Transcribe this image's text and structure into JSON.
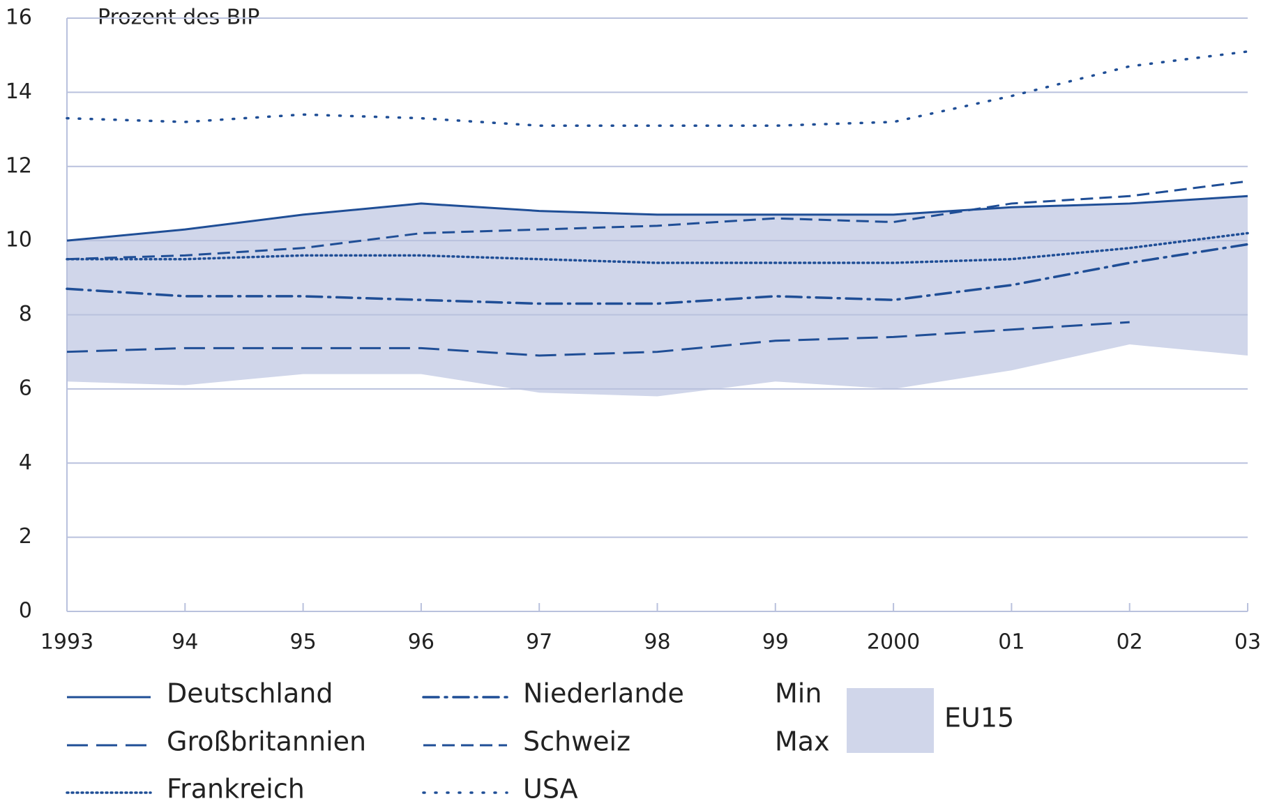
{
  "chart_data": {
    "type": "line",
    "y_label": "Prozent des BIP",
    "categories": [
      "1993",
      "94",
      "95",
      "96",
      "97",
      "98",
      "99",
      "2000",
      "01",
      "02",
      "03"
    ],
    "ylim": [
      0,
      16
    ],
    "yticks": [
      0,
      2,
      4,
      6,
      8,
      10,
      12,
      14,
      16
    ],
    "grid": true,
    "band": {
      "name": "EU15",
      "min_label": "Min",
      "max_label": "Max",
      "color": "#d0d6ea",
      "min": [
        6.2,
        6.1,
        6.4,
        6.4,
        5.9,
        5.8,
        6.2,
        6.0,
        6.5,
        7.2,
        6.9
      ],
      "max": [
        10.0,
        10.3,
        10.7,
        11.0,
        10.8,
        10.7,
        10.7,
        10.7,
        10.9,
        11.0,
        11.2
      ]
    },
    "series": [
      {
        "name": "Deutschland",
        "color": "#1f4e96",
        "style": "solid",
        "values": [
          10.0,
          10.3,
          10.7,
          11.0,
          10.8,
          10.7,
          10.7,
          10.7,
          10.9,
          11.0,
          11.2
        ]
      },
      {
        "name": "Niederlande",
        "color": "#1f4e96",
        "style": "dash-dot",
        "values": [
          8.7,
          8.5,
          8.5,
          8.4,
          8.3,
          8.3,
          8.5,
          8.4,
          8.8,
          9.4,
          9.9
        ]
      },
      {
        "name": "Großbritannien",
        "color": "#1f4e96",
        "style": "long-dash",
        "values": [
          7.0,
          7.1,
          7.1,
          7.1,
          6.9,
          7.0,
          7.3,
          7.4,
          7.6,
          7.8,
          null
        ]
      },
      {
        "name": "Schweiz",
        "color": "#1f4e96",
        "style": "dash",
        "values": [
          9.5,
          9.6,
          9.8,
          10.2,
          10.3,
          10.4,
          10.6,
          10.5,
          11.0,
          11.2,
          11.6
        ]
      },
      {
        "name": "Frankreich",
        "color": "#1f4e96",
        "style": "dense-dot",
        "values": [
          9.5,
          9.5,
          9.6,
          9.6,
          9.5,
          9.4,
          9.4,
          9.4,
          9.5,
          9.8,
          10.2
        ]
      },
      {
        "name": "USA",
        "color": "#1f4e96",
        "style": "sparse-dot",
        "values": [
          13.3,
          13.2,
          13.4,
          13.3,
          13.1,
          13.1,
          13.1,
          13.2,
          13.9,
          14.7,
          15.1
        ]
      }
    ]
  }
}
